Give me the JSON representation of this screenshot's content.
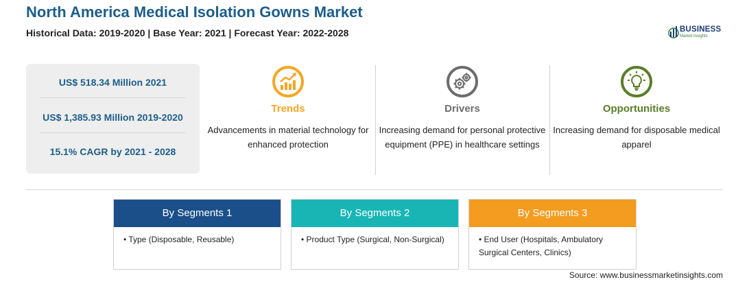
{
  "header": {
    "title": "North America Medical Isolation Gowns Market",
    "subtitle": "Historical Data: 2019-2020 | Base Year: 2021 | Forecast Year: 2022-2028"
  },
  "logo": {
    "name": "BUSINESS",
    "tagline": "Market Insights",
    "icon": "bar-chart-globe-icon"
  },
  "stats": [
    "US$ 518.34 Million 2021",
    "US$ 1,385.93 Million 2019-2020",
    "15.1% CAGR by 2021 - 2028"
  ],
  "columns": {
    "trends": {
      "title": "Trends",
      "text": "Advancements in material technology for enhanced protection",
      "icon": "trending-up-chart-icon",
      "color": "#f5a623"
    },
    "drivers": {
      "title": "Drivers",
      "text": "Increasing demand for personal protective equipment (PPE) in healthcare settings",
      "icon": "gears-icon",
      "color": "#6d6d6d"
    },
    "opportunities": {
      "title": "Opportunities",
      "text": "Increasing demand for disposable medical apparel",
      "icon": "lightbulb-icon",
      "color": "#5a7d2a"
    }
  },
  "segments": [
    {
      "title": "By Segments 1",
      "text": "• Type (Disposable, Reusable)",
      "color": "#1b4f8a"
    },
    {
      "title": "By Segments 2",
      "text": "• Product Type (Surgical, Non-Surgical)",
      "color": "#19b5b5"
    },
    {
      "title": "By Segments 3",
      "text": "• End User (Hospitals, Ambulatory Surgical Centers, Clinics)",
      "color": "#f39c1f"
    }
  ],
  "source": "Source: www.businessmarketinsights.com"
}
